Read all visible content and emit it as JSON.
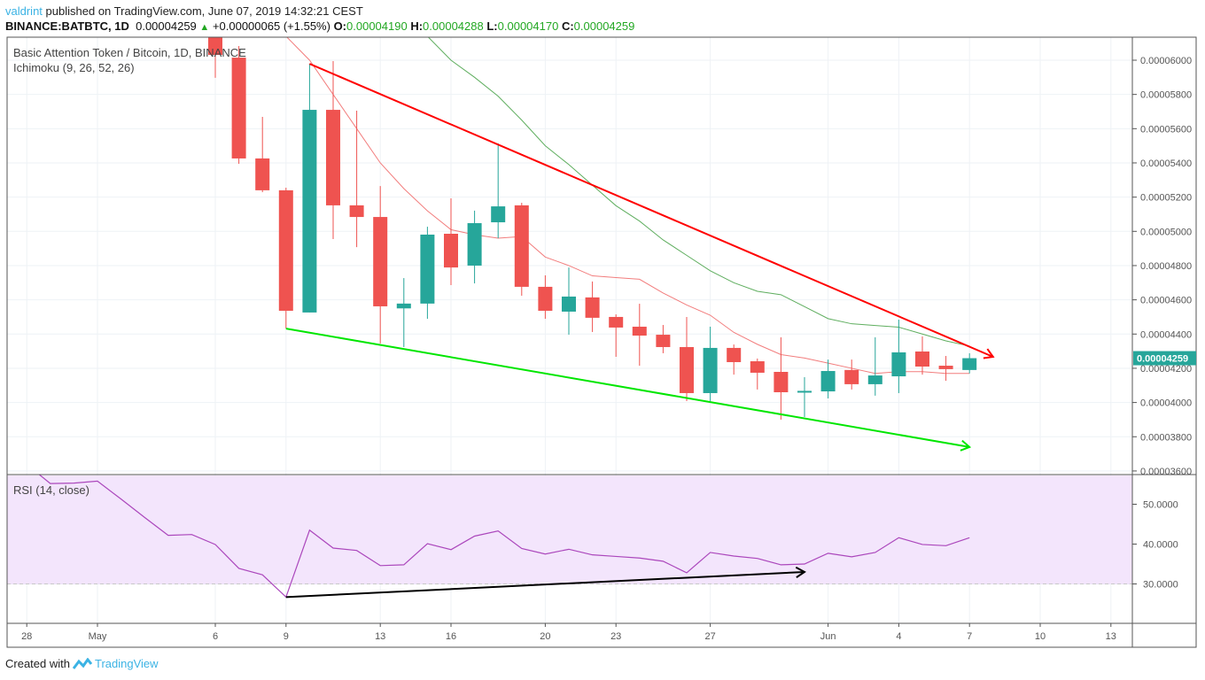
{
  "header": {
    "author": "valdrint",
    "published": "published on TradingView.com, June 07, 2019 14:32:21 CEST",
    "symbol": "BINANCE:BATBTC, 1D",
    "last": "0.00004259",
    "change": "+0.00000065 (+1.55%)",
    "o_label": "O:",
    "o": "0.00004190",
    "h_label": "H:",
    "h": "0.00004288",
    "l_label": "L:",
    "l": "0.00004170",
    "c_label": "C:",
    "c": "0.00004259",
    "up_icon": "triangle-up-icon"
  },
  "footer": {
    "created": "Created with",
    "brand": "TradingView",
    "logo_icon": "tradingview-logo-icon"
  },
  "chart_data": {
    "type": "candlestick",
    "title": "Basic Attention Token / Bitcoin, 1D, BINANCE",
    "indicator": "Ichimoku (9, 26, 52, 26)",
    "price_axis": {
      "ylim": [
        3.5e-05,
        6.13e-05
      ],
      "ticks": [
        "0.00006000",
        "0.00005800",
        "0.00005600",
        "0.00005400",
        "0.00005200",
        "0.00005000",
        "0.00004800",
        "0.00004600",
        "0.00004400",
        "0.00004200",
        "0.00004000",
        "0.00003800",
        "0.00003600"
      ],
      "last_price_label": "0.00004259"
    },
    "time_axis": {
      "ticks": [
        {
          "date": "2019-04-28",
          "label": "28"
        },
        {
          "date": "2019-05-01",
          "label": "May"
        },
        {
          "date": "2019-05-06",
          "label": "6"
        },
        {
          "date": "2019-05-09",
          "label": "9"
        },
        {
          "date": "2019-05-13",
          "label": "13"
        },
        {
          "date": "2019-05-16",
          "label": "16"
        },
        {
          "date": "2019-05-20",
          "label": "20"
        },
        {
          "date": "2019-05-23",
          "label": "23"
        },
        {
          "date": "2019-05-27",
          "label": "27"
        },
        {
          "date": "2019-06-01",
          "label": "Jun"
        },
        {
          "date": "2019-06-04",
          "label": "4"
        },
        {
          "date": "2019-06-07",
          "label": "7"
        },
        {
          "date": "2019-06-10",
          "label": "10"
        },
        {
          "date": "2019-06-13",
          "label": "13"
        }
      ]
    },
    "grid": true,
    "colors": {
      "up": "#26a69a",
      "down": "#ef5350",
      "tenkan": "#f27d7d",
      "kijun": "#5fae5f",
      "rsi": "#ab47bc",
      "rsi_band": "#f3e5fc",
      "resistance": "#ff0000",
      "support": "#00e600",
      "divergence": "#000000"
    },
    "candles": [
      [
        "2019-05-06",
        6.15e-05,
        6.25e-05,
        5.897e-05,
        6.031e-05
      ],
      [
        "2019-05-07",
        6.015e-05,
        6.083e-05,
        5.395e-05,
        5.426e-05
      ],
      [
        "2019-05-08",
        5.426e-05,
        5.669e-05,
        5.229e-05,
        5.24e-05
      ],
      [
        "2019-05-09",
        5.24e-05,
        5.255e-05,
        4.432e-05,
        4.536e-05
      ],
      [
        "2019-05-10",
        4.526e-05,
        5.979e-05,
        4.526e-05,
        5.71e-05
      ],
      [
        "2019-05-11",
        5.71e-05,
        5.995e-05,
        4.955e-05,
        5.152e-05
      ],
      [
        "2019-05-12",
        5.152e-05,
        5.705e-05,
        4.908e-05,
        5.084e-05
      ],
      [
        "2019-05-13",
        5.084e-05,
        5.265e-05,
        4.345e-05,
        4.562e-05
      ],
      [
        "2019-05-14",
        4.55e-05,
        4.727e-05,
        4.324e-05,
        4.578e-05
      ],
      [
        "2019-05-15",
        4.578e-05,
        5.027e-05,
        4.489e-05,
        4.981e-05
      ],
      [
        "2019-05-16",
        4.986e-05,
        5.193e-05,
        4.686e-05,
        4.789e-05
      ],
      [
        "2019-05-17",
        4.8e-05,
        5.121e-05,
        4.696e-05,
        5.048e-05
      ],
      [
        "2019-05-18",
        5.053e-05,
        5.514e-05,
        4.96e-05,
        5.146e-05
      ],
      [
        "2019-05-19",
        5.152e-05,
        5.167e-05,
        4.624e-05,
        4.676e-05
      ],
      [
        "2019-05-20",
        4.676e-05,
        4.743e-05,
        4.489e-05,
        4.536e-05
      ],
      [
        "2019-05-21",
        4.531e-05,
        4.789e-05,
        4.396e-05,
        4.619e-05
      ],
      [
        "2019-05-22",
        4.614e-05,
        4.707e-05,
        4.412e-05,
        4.495e-05
      ],
      [
        "2019-05-23",
        4.5e-05,
        4.515e-05,
        4.267e-05,
        4.438e-05
      ],
      [
        "2019-05-24",
        4.443e-05,
        4.577e-05,
        4.215e-05,
        4.391e-05
      ],
      [
        "2019-05-25",
        4.396e-05,
        4.453e-05,
        4.288e-05,
        4.324e-05
      ],
      [
        "2019-05-26",
        4.324e-05,
        4.5e-05,
        4.008e-05,
        4.055e-05
      ],
      [
        "2019-05-27",
        4.055e-05,
        4.443e-05,
        4.008e-05,
        4.319e-05
      ],
      [
        "2019-05-28",
        4.319e-05,
        4.339e-05,
        4.163e-05,
        4.236e-05
      ],
      [
        "2019-05-29",
        4.241e-05,
        4.257e-05,
        4.076e-05,
        4.174e-05
      ],
      [
        "2019-05-30",
        4.179e-05,
        4.381e-05,
        3.9e-05,
        4.06e-05
      ],
      [
        "2019-05-31",
        4.065e-05,
        4.148e-05,
        3.915e-05,
        4.068e-05
      ],
      [
        "2019-06-01",
        4.065e-05,
        4.251e-05,
        4.024e-05,
        4.184e-05
      ],
      [
        "2019-06-02",
        4.19e-05,
        4.251e-05,
        4.076e-05,
        4.107e-05
      ],
      [
        "2019-06-03",
        4.107e-05,
        4.381e-05,
        4.04e-05,
        4.158e-05
      ],
      [
        "2019-06-04",
        4.153e-05,
        4.484e-05,
        4.055e-05,
        4.293e-05
      ],
      [
        "2019-06-05",
        4.298e-05,
        4.386e-05,
        4.163e-05,
        4.21e-05
      ],
      [
        "2019-06-06",
        4.215e-05,
        4.272e-05,
        4.127e-05,
        4.195e-05
      ],
      [
        "2019-06-07",
        4.19e-05,
        4.288e-05,
        4.17e-05,
        4.259e-05
      ]
    ],
    "tenkan": [
      [
        "2019-05-08",
        6.3e-05
      ],
      [
        "2019-05-09",
        6.14e-05
      ],
      [
        "2019-05-10",
        6e-05
      ],
      [
        "2019-05-11",
        5.8e-05
      ],
      [
        "2019-05-12",
        5.6e-05
      ],
      [
        "2019-05-13",
        5.4e-05
      ],
      [
        "2019-05-14",
        5.25e-05
      ],
      [
        "2019-05-15",
        5.12e-05
      ],
      [
        "2019-05-16",
        5.01e-05
      ],
      [
        "2019-05-17",
        4.98e-05
      ],
      [
        "2019-05-18",
        4.96e-05
      ],
      [
        "2019-05-19",
        4.97e-05
      ],
      [
        "2019-05-20",
        4.85e-05
      ],
      [
        "2019-05-21",
        4.8e-05
      ],
      [
        "2019-05-22",
        4.74e-05
      ],
      [
        "2019-05-23",
        4.73e-05
      ],
      [
        "2019-05-24",
        4.72e-05
      ],
      [
        "2019-05-25",
        4.64e-05
      ],
      [
        "2019-05-26",
        4.57e-05
      ],
      [
        "2019-05-27",
        4.51e-05
      ],
      [
        "2019-05-28",
        4.41e-05
      ],
      [
        "2019-05-29",
        4.34e-05
      ],
      [
        "2019-05-30",
        4.28e-05
      ],
      [
        "2019-05-31",
        4.26e-05
      ],
      [
        "2019-06-01",
        4.23e-05
      ],
      [
        "2019-06-02",
        4.2e-05
      ],
      [
        "2019-06-03",
        4.17e-05
      ],
      [
        "2019-06-04",
        4.18e-05
      ],
      [
        "2019-06-05",
        4.18e-05
      ],
      [
        "2019-06-06",
        4.17e-05
      ],
      [
        "2019-06-07",
        4.17e-05
      ]
    ],
    "kijun": [
      [
        "2019-05-14",
        6.25e-05
      ],
      [
        "2019-05-15",
        6.14e-05
      ],
      [
        "2019-05-16",
        6e-05
      ],
      [
        "2019-05-17",
        5.9e-05
      ],
      [
        "2019-05-18",
        5.79e-05
      ],
      [
        "2019-05-19",
        5.65e-05
      ],
      [
        "2019-05-20",
        5.5e-05
      ],
      [
        "2019-05-21",
        5.39e-05
      ],
      [
        "2019-05-22",
        5.27e-05
      ],
      [
        "2019-05-23",
        5.15e-05
      ],
      [
        "2019-05-24",
        5.06e-05
      ],
      [
        "2019-05-25",
        4.95e-05
      ],
      [
        "2019-05-26",
        4.86e-05
      ],
      [
        "2019-05-27",
        4.77e-05
      ],
      [
        "2019-05-28",
        4.7e-05
      ],
      [
        "2019-05-29",
        4.65e-05
      ],
      [
        "2019-05-30",
        4.63e-05
      ],
      [
        "2019-05-31",
        4.56e-05
      ],
      [
        "2019-06-01",
        4.49e-05
      ],
      [
        "2019-06-02",
        4.46e-05
      ],
      [
        "2019-06-03",
        4.45e-05
      ],
      [
        "2019-06-04",
        4.44e-05
      ],
      [
        "2019-06-05",
        4.4e-05
      ],
      [
        "2019-06-06",
        4.36e-05
      ],
      [
        "2019-06-07",
        4.33e-05
      ]
    ],
    "trendlines": [
      {
        "kind": "resistance",
        "from": [
          "2019-05-10",
          5.979e-05
        ],
        "to": [
          "2019-06-08",
          4.267e-05
        ],
        "arrow": true
      },
      {
        "kind": "support",
        "from": [
          "2019-05-09",
          4.432e-05
        ],
        "to": [
          "2019-06-07",
          3.74e-05
        ],
        "arrow": true
      }
    ],
    "rsi": {
      "label": "RSI (14, close)",
      "ylim": [
        20.9,
        57.6
      ],
      "ticks": [
        "50.0000",
        "40.0000",
        "30.0000"
      ],
      "band": [
        30,
        70
      ],
      "values": [
        [
          "2019-04-28",
          60.0
        ],
        [
          "2019-04-29",
          55.2
        ],
        [
          "2019-04-30",
          55.3
        ],
        [
          "2019-05-01",
          55.8
        ],
        [
          "2019-05-02",
          51.3
        ],
        [
          "2019-05-03",
          46.7
        ],
        [
          "2019-05-04",
          42.2
        ],
        [
          "2019-05-05",
          42.4
        ],
        [
          "2019-05-06",
          39.9
        ],
        [
          "2019-05-07",
          33.9
        ],
        [
          "2019-05-08",
          32.3
        ],
        [
          "2019-05-09",
          26.7
        ],
        [
          "2019-05-10",
          43.5
        ],
        [
          "2019-05-11",
          39.0
        ],
        [
          "2019-05-12",
          38.4
        ],
        [
          "2019-05-13",
          34.6
        ],
        [
          "2019-05-14",
          34.8
        ],
        [
          "2019-05-15",
          40.1
        ],
        [
          "2019-05-16",
          38.6
        ],
        [
          "2019-05-17",
          42.0
        ],
        [
          "2019-05-18",
          43.3
        ],
        [
          "2019-05-19",
          38.9
        ],
        [
          "2019-05-20",
          37.5
        ],
        [
          "2019-05-21",
          38.7
        ],
        [
          "2019-05-22",
          37.3
        ],
        [
          "2019-05-23",
          36.9
        ],
        [
          "2019-05-24",
          36.5
        ],
        [
          "2019-05-25",
          35.7
        ],
        [
          "2019-05-26",
          32.8
        ],
        [
          "2019-05-27",
          37.9
        ],
        [
          "2019-05-28",
          37.0
        ],
        [
          "2019-05-29",
          36.4
        ],
        [
          "2019-05-30",
          34.8
        ],
        [
          "2019-05-31",
          35.0
        ],
        [
          "2019-06-01",
          37.7
        ],
        [
          "2019-06-02",
          36.8
        ],
        [
          "2019-06-03",
          37.9
        ],
        [
          "2019-06-04",
          41.6
        ],
        [
          "2019-06-05",
          39.9
        ],
        [
          "2019-06-06",
          39.6
        ],
        [
          "2019-06-07",
          41.6
        ]
      ],
      "divergence_line": {
        "from": [
          "2019-05-09",
          26.7
        ],
        "to": [
          "2019-05-31",
          33.0
        ],
        "arrow": true
      }
    }
  }
}
